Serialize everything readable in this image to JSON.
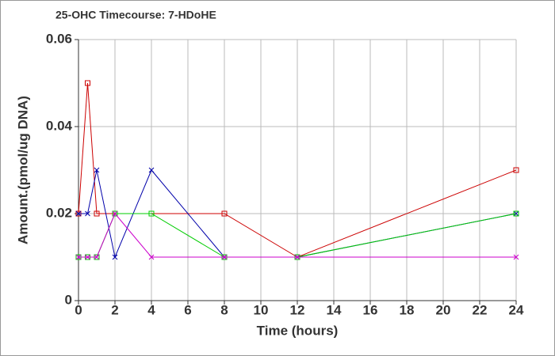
{
  "chart_data": {
    "type": "line",
    "title": "25-OHC Timecourse: 7-HDoHE",
    "x_label": "Time (hours)",
    "y_label": "Amount.(pmol/ug DNA)",
    "x": [
      0,
      0.5,
      1,
      2,
      4,
      8,
      12,
      24
    ],
    "series": [
      {
        "color": "#cc0000",
        "marker": "square",
        "values": [
          0.02,
          0.05,
          0.02,
          0.02,
          0.02,
          0.02,
          0.01,
          0.03
        ]
      },
      {
        "color": "#0000aa",
        "marker": "x",
        "values": [
          0.02,
          0.02,
          0.03,
          0.01,
          0.03,
          0.01,
          0.01,
          0.02
        ]
      },
      {
        "color": "#00cc00",
        "marker": "square",
        "values": [
          0.01,
          0.01,
          0.01,
          0.02,
          0.02,
          0.01,
          0.01,
          0.02
        ]
      },
      {
        "color": "#cc00cc",
        "marker": "x",
        "values": [
          0.01,
          0.01,
          0.01,
          0.02,
          0.01,
          0.01,
          0.01,
          0.01
        ]
      }
    ],
    "xlim": [
      0,
      24
    ],
    "xticks": [
      0,
      2,
      4,
      6,
      8,
      10,
      12,
      14,
      16,
      18,
      20,
      22,
      24
    ],
    "ylim": [
      0,
      0.06
    ],
    "yticks": [
      0,
      0.02,
      0.04,
      0.06
    ],
    "grid": true
  }
}
